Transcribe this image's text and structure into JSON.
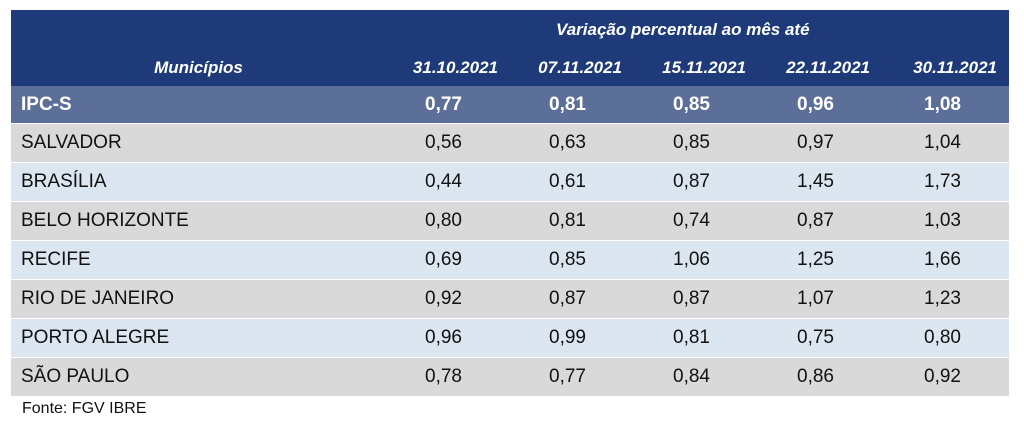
{
  "header": {
    "caption": "Variação percentual ao mês até",
    "municipios_label": "Municípios",
    "dates": [
      "31.10.2021",
      "07.11.2021",
      "15.11.2021",
      "22.11.2021",
      "30.11.2021"
    ]
  },
  "ipcs": {
    "label": "IPC-S",
    "values": [
      "0,77",
      "0,81",
      "0,85",
      "0,96",
      "1,08"
    ]
  },
  "rows": [
    {
      "name": "SALVADOR",
      "values": [
        "0,56",
        "0,63",
        "0,85",
        "0,97",
        "1,04"
      ]
    },
    {
      "name": "BRASÍLIA",
      "values": [
        "0,44",
        "0,61",
        "0,87",
        "1,45",
        "1,73"
      ]
    },
    {
      "name": "BELO HORIZONTE",
      "values": [
        "0,80",
        "0,81",
        "0,74",
        "0,87",
        "1,03"
      ]
    },
    {
      "name": "RECIFE",
      "values": [
        "0,69",
        "0,85",
        "1,06",
        "1,25",
        "1,66"
      ]
    },
    {
      "name": "RIO DE JANEIRO",
      "values": [
        "0,92",
        "0,87",
        "0,87",
        "1,07",
        "1,23"
      ]
    },
    {
      "name": "PORTO ALEGRE",
      "values": [
        "0,96",
        "0,99",
        "0,81",
        "0,75",
        "0,80"
      ]
    },
    {
      "name": "SÃO PAULO",
      "values": [
        "0,78",
        "0,77",
        "0,84",
        "0,86",
        "0,92"
      ]
    }
  ],
  "source": "Fonte: FGV IBRE",
  "colors": {
    "header_bg": "#1e3a78",
    "ipcs_bg": "#5c6f98",
    "row_gray": "#d9d9d9",
    "row_blue": "#dce6f0"
  }
}
